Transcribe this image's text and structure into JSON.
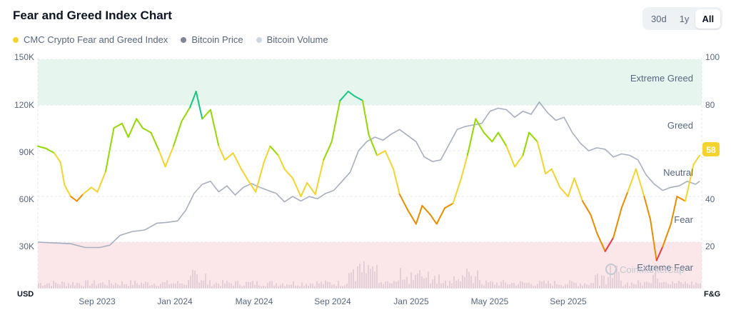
{
  "header": {
    "title": "Fear and Greed Index Chart",
    "ranges": [
      "30d",
      "1y",
      "All"
    ],
    "active_range": "All"
  },
  "legend": [
    {
      "label": "CMC Crypto Fear and Greed Index",
      "color": "#f3d42f"
    },
    {
      "label": "Bitcoin Price",
      "color": "#7d8596"
    },
    {
      "label": "Bitcoin Volume",
      "color": "#cfd6e4"
    }
  ],
  "watermark": "CoinMarketCap",
  "colors": {
    "extreme_greed_band": "#e6f6ee",
    "extreme_fear_band": "#fbe7e9",
    "fg_extreme_fear": "#ea3943",
    "fg_fear": "#ea8c00",
    "fg_neutral": "#f3d42f",
    "fg_greed": "#93d900",
    "fg_extreme_greed": "#16c784",
    "price_line": "#a6aec0",
    "volume_bars": "#e2cfd8",
    "badge": "#f3d42f"
  },
  "chart_data": {
    "type": "line",
    "title": "Fear and Greed Index Chart",
    "left_axis": {
      "label": "USD",
      "ticks": [
        "150K",
        "120K",
        "90K",
        "60K",
        "30K"
      ],
      "range": [
        0,
        150000
      ]
    },
    "right_axis": {
      "label": "F&G",
      "ticks": [
        "100",
        "80",
        "60",
        "40",
        "20"
      ],
      "range": [
        0,
        100
      ]
    },
    "x_ticks": [
      "Sep 2023",
      "Jan 2024",
      "May 2024",
      "Sep 2024",
      "Jan 2025",
      "May 2025",
      "Sep 2025"
    ],
    "x_tick_positions_month": [
      2,
      6,
      10,
      14,
      18,
      22,
      26
    ],
    "zones": [
      {
        "label": "Extreme Greed",
        "min": 80,
        "max": 100
      },
      {
        "label": "Greed",
        "min": 60,
        "max": 80
      },
      {
        "label": "Neutral",
        "min": 40,
        "max": 60
      },
      {
        "label": "Fear",
        "min": 20,
        "max": 40
      },
      {
        "label": "Extreme Fear",
        "min": 0,
        "max": 20
      }
    ],
    "current_value": "58",
    "time_unit": "months since Jul 2023",
    "series": [
      {
        "name": "CMC Crypto Fear and Greed Index",
        "axis": "right",
        "points": [
          [
            0,
            62
          ],
          [
            0.4,
            61
          ],
          [
            0.8,
            59
          ],
          [
            1.1,
            55
          ],
          [
            1.3,
            45
          ],
          [
            1.6,
            40
          ],
          [
            1.9,
            38
          ],
          [
            2.2,
            41
          ],
          [
            2.6,
            44
          ],
          [
            2.9,
            42
          ],
          [
            3.3,
            51
          ],
          [
            3.7,
            70
          ],
          [
            4.1,
            72
          ],
          [
            4.4,
            66
          ],
          [
            4.8,
            74
          ],
          [
            5.1,
            70
          ],
          [
            5.5,
            68
          ],
          [
            5.9,
            60
          ],
          [
            6.2,
            53
          ],
          [
            6.6,
            62
          ],
          [
            7.0,
            73
          ],
          [
            7.4,
            79
          ],
          [
            7.7,
            86
          ],
          [
            8.0,
            74
          ],
          [
            8.4,
            78
          ],
          [
            8.8,
            62
          ],
          [
            9.1,
            56
          ],
          [
            9.5,
            59
          ],
          [
            9.9,
            52
          ],
          [
            10.3,
            46
          ],
          [
            10.6,
            42
          ],
          [
            11.0,
            55
          ],
          [
            11.3,
            62
          ],
          [
            11.7,
            58
          ],
          [
            12.0,
            52
          ],
          [
            12.4,
            48
          ],
          [
            12.8,
            40
          ],
          [
            13.1,
            46
          ],
          [
            13.5,
            41
          ],
          [
            13.9,
            56
          ],
          [
            14.3,
            64
          ],
          [
            14.7,
            82
          ],
          [
            15.1,
            86
          ],
          [
            15.4,
            84
          ],
          [
            15.8,
            82
          ],
          [
            16.1,
            67
          ],
          [
            16.5,
            58
          ],
          [
            16.9,
            60
          ],
          [
            17.3,
            52
          ],
          [
            17.6,
            41
          ],
          [
            18.0,
            34
          ],
          [
            18.4,
            28
          ],
          [
            18.7,
            36
          ],
          [
            19.1,
            32
          ],
          [
            19.4,
            28
          ],
          [
            19.8,
            35
          ],
          [
            20.2,
            37
          ],
          [
            20.6,
            48
          ],
          [
            20.9,
            58
          ],
          [
            21.3,
            74
          ],
          [
            21.7,
            68
          ],
          [
            22.1,
            64
          ],
          [
            22.4,
            68
          ],
          [
            22.8,
            62
          ],
          [
            23.2,
            53
          ],
          [
            23.6,
            58
          ],
          [
            23.9,
            68
          ],
          [
            24.3,
            64
          ],
          [
            24.7,
            50
          ],
          [
            25.0,
            52
          ],
          [
            25.4,
            44
          ],
          [
            25.8,
            40
          ],
          [
            26.1,
            48
          ],
          [
            26.5,
            38
          ],
          [
            26.9,
            32
          ],
          [
            27.2,
            24
          ],
          [
            27.6,
            16
          ],
          [
            28.0,
            22
          ],
          [
            28.4,
            35
          ],
          [
            28.7,
            42
          ],
          [
            29.1,
            52
          ],
          [
            29.5,
            40
          ],
          [
            29.8,
            30
          ],
          [
            30.1,
            12
          ],
          [
            30.4,
            18
          ],
          [
            30.8,
            28
          ],
          [
            31.1,
            40
          ],
          [
            31.5,
            38
          ],
          [
            31.9,
            54
          ],
          [
            32.2,
            58
          ]
        ]
      },
      {
        "name": "Bitcoin Price",
        "axis": "left",
        "points": [
          [
            0,
            30000
          ],
          [
            0.8,
            29500
          ],
          [
            1.6,
            29000
          ],
          [
            2.3,
            26500
          ],
          [
            3.0,
            26500
          ],
          [
            3.5,
            28000
          ],
          [
            4.0,
            34500
          ],
          [
            4.6,
            37000
          ],
          [
            5.2,
            38000
          ],
          [
            5.8,
            42500
          ],
          [
            6.3,
            43000
          ],
          [
            6.8,
            44000
          ],
          [
            7.2,
            51000
          ],
          [
            7.6,
            62000
          ],
          [
            8.0,
            68000
          ],
          [
            8.4,
            70000
          ],
          [
            8.8,
            63000
          ],
          [
            9.2,
            67000
          ],
          [
            9.6,
            61000
          ],
          [
            10.0,
            66000
          ],
          [
            10.4,
            68500
          ],
          [
            10.8,
            66000
          ],
          [
            11.2,
            64000
          ],
          [
            11.6,
            62000
          ],
          [
            12.0,
            56500
          ],
          [
            12.4,
            60000
          ],
          [
            12.8,
            57000
          ],
          [
            13.2,
            60000
          ],
          [
            13.6,
            58500
          ],
          [
            14.0,
            62000
          ],
          [
            14.4,
            64000
          ],
          [
            14.8,
            70000
          ],
          [
            15.2,
            76000
          ],
          [
            15.6,
            90000
          ],
          [
            16.0,
            96000
          ],
          [
            16.4,
            99000
          ],
          [
            16.8,
            97000
          ],
          [
            17.2,
            101000
          ],
          [
            17.6,
            104000
          ],
          [
            18.0,
            100000
          ],
          [
            18.4,
            96000
          ],
          [
            18.8,
            86000
          ],
          [
            19.2,
            83000
          ],
          [
            19.6,
            84000
          ],
          [
            20.0,
            94000
          ],
          [
            20.4,
            104000
          ],
          [
            20.8,
            106000
          ],
          [
            21.2,
            107000
          ],
          [
            21.6,
            108000
          ],
          [
            22.0,
            116000
          ],
          [
            22.4,
            118000
          ],
          [
            22.8,
            117000
          ],
          [
            23.2,
            112000
          ],
          [
            23.6,
            116000
          ],
          [
            24.0,
            114000
          ],
          [
            24.4,
            122000
          ],
          [
            24.8,
            115000
          ],
          [
            25.2,
            110000
          ],
          [
            25.6,
            112000
          ],
          [
            26.0,
            102000
          ],
          [
            26.4,
            95000
          ],
          [
            26.8,
            90000
          ],
          [
            27.2,
            92000
          ],
          [
            27.6,
            91000
          ],
          [
            28.0,
            86000
          ],
          [
            28.4,
            88000
          ],
          [
            28.8,
            87000
          ],
          [
            29.2,
            84000
          ],
          [
            29.6,
            74000
          ],
          [
            30.0,
            68000
          ],
          [
            30.4,
            64000
          ],
          [
            30.8,
            66000
          ],
          [
            31.2,
            67000
          ],
          [
            31.6,
            70000
          ],
          [
            32.0,
            68000
          ],
          [
            32.2,
            70000
          ]
        ]
      }
    ]
  }
}
